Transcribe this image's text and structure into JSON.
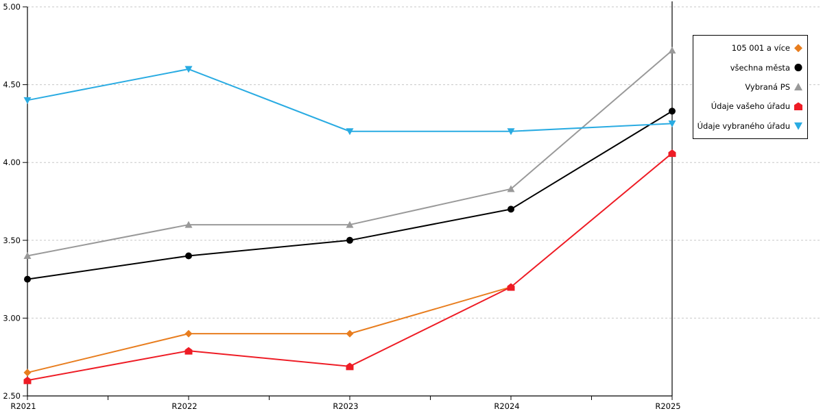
{
  "chart_data": {
    "type": "line",
    "title": "",
    "xlabel": "",
    "ylabel": "",
    "categories": [
      "R2021",
      "R2022",
      "R2023",
      "R2024",
      "R2025"
    ],
    "series": [
      {
        "name": "105 001 a více",
        "marker": "diamond",
        "color": "#E87D1E",
        "values": [
          2.65,
          2.9,
          2.9,
          3.2,
          null
        ]
      },
      {
        "name": "všechna města",
        "marker": "circle",
        "color": "#000000",
        "values": [
          3.25,
          3.4,
          3.5,
          3.7,
          4.33
        ]
      },
      {
        "name": "Vybraná PS",
        "marker": "triangle-up",
        "color": "#999999",
        "values": [
          3.4,
          3.6,
          3.6,
          3.83,
          4.72
        ]
      },
      {
        "name": "Údaje vašeho úřadu",
        "marker": "pentagon",
        "color": "#EE1C25",
        "values": [
          2.6,
          2.79,
          2.69,
          3.2,
          4.06
        ]
      },
      {
        "name": "Údaje vybraného úřadu",
        "marker": "triangle-down",
        "color": "#29ABE2",
        "values": [
          4.4,
          4.6,
          4.2,
          4.2,
          4.25
        ]
      }
    ],
    "ylim": [
      2.5,
      5.0
    ],
    "ytick_labels": [
      "2.50",
      "3.00",
      "3.50",
      "4.00",
      "4.50",
      "5.00"
    ],
    "grid": "horizontal-dashed",
    "grid_color": "#c7c7c7",
    "axis_color": "#000000",
    "legend_position": "outside-top-right"
  }
}
